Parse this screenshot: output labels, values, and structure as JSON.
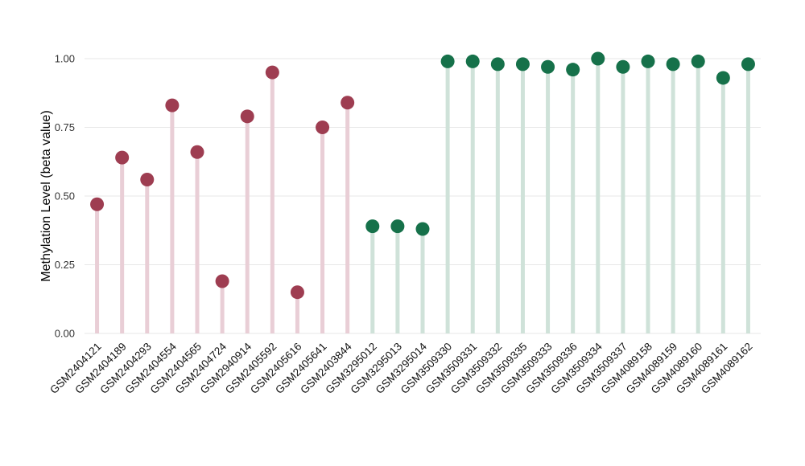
{
  "chart_data": {
    "type": "lollipop",
    "title": "",
    "xlabel": "",
    "ylabel": "Methylation Level (beta value)",
    "ylim": [
      0,
      1.0
    ],
    "yticks": [
      0,
      0.25,
      0.5,
      0.75,
      1.0
    ],
    "ytick_labels": [
      "0.00",
      "0.25",
      "0.50",
      "0.75",
      "1.00"
    ],
    "grid": true,
    "grid_color": "#e7e7e7",
    "background_color": "#ffffff",
    "legend": "none",
    "series": [
      {
        "name": "maroon-group",
        "dot_color": "#9e3d51",
        "stem_color": "#e9ced6"
      },
      {
        "name": "green-group",
        "dot_color": "#16714a",
        "stem_color": "#cfe2d9"
      }
    ],
    "points": [
      {
        "category": "GSM2404121",
        "value": 0.47,
        "group": 0
      },
      {
        "category": "GSM2404189",
        "value": 0.64,
        "group": 0
      },
      {
        "category": "GSM2404293",
        "value": 0.56,
        "group": 0
      },
      {
        "category": "GSM2404554",
        "value": 0.83,
        "group": 0
      },
      {
        "category": "GSM2404565",
        "value": 0.66,
        "group": 0
      },
      {
        "category": "GSM2404724",
        "value": 0.19,
        "group": 0
      },
      {
        "category": "GSM2940914",
        "value": 0.79,
        "group": 0
      },
      {
        "category": "GSM2405592",
        "value": 0.95,
        "group": 0
      },
      {
        "category": "GSM2405616",
        "value": 0.15,
        "group": 0
      },
      {
        "category": "GSM2405641",
        "value": 0.75,
        "group": 0
      },
      {
        "category": "GSM2403844",
        "value": 0.84,
        "group": 0
      },
      {
        "category": "GSM3295012",
        "value": 0.39,
        "group": 1
      },
      {
        "category": "GSM3295013",
        "value": 0.39,
        "group": 1
      },
      {
        "category": "GSM3295014",
        "value": 0.38,
        "group": 1
      },
      {
        "category": "GSM3509330",
        "value": 0.99,
        "group": 1
      },
      {
        "category": "GSM3509331",
        "value": 0.99,
        "group": 1
      },
      {
        "category": "GSM3509332",
        "value": 0.98,
        "group": 1
      },
      {
        "category": "GSM3509335",
        "value": 0.98,
        "group": 1
      },
      {
        "category": "GSM3509333",
        "value": 0.97,
        "group": 1
      },
      {
        "category": "GSM3509336",
        "value": 0.96,
        "group": 1
      },
      {
        "category": "GSM3509334",
        "value": 1.0,
        "group": 1
      },
      {
        "category": "GSM3509337",
        "value": 0.97,
        "group": 1
      },
      {
        "category": "GSM4089158",
        "value": 0.99,
        "group": 1
      },
      {
        "category": "GSM4089159",
        "value": 0.98,
        "group": 1
      },
      {
        "category": "GSM4089160",
        "value": 0.99,
        "group": 1
      },
      {
        "category": "GSM4089161",
        "value": 0.93,
        "group": 1
      },
      {
        "category": "GSM4089162",
        "value": 0.98,
        "group": 1
      }
    ]
  }
}
